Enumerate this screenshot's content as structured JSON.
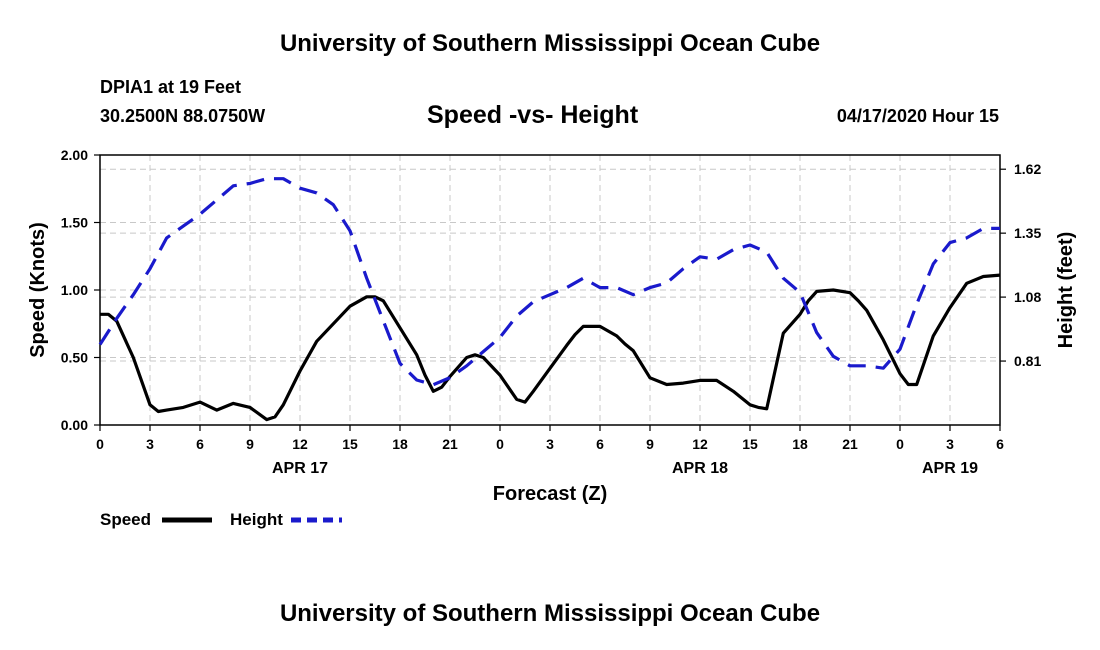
{
  "header": {
    "title": "University of Southern Mississippi Ocean Cube",
    "station": "DPIA1 at 19 Feet",
    "coords": "30.2500N 88.0750W",
    "subtitle": "Speed -vs- Height",
    "datetime": "04/17/2020 Hour 15"
  },
  "footer": {
    "title": "University of Southern Mississippi Ocean Cube"
  },
  "chart_data": {
    "type": "line",
    "title": "Speed -vs- Height",
    "xlabel": "Forecast (Z)",
    "ylabel": "Speed (Knots)",
    "y2label": "Height (feet)",
    "xlim": [
      0,
      54
    ],
    "ylim": [
      0,
      2.0
    ],
    "y2lim": [
      0.54,
      1.68
    ],
    "x_ticks": [
      0,
      3,
      6,
      9,
      12,
      15,
      18,
      21,
      24,
      27,
      30,
      33,
      36,
      39,
      42,
      45,
      48,
      51,
      54
    ],
    "x_tick_labels": [
      "0",
      "3",
      "6",
      "9",
      "12",
      "15",
      "18",
      "21",
      "0",
      "3",
      "6",
      "9",
      "12",
      "15",
      "18",
      "21",
      "0",
      "3",
      "6"
    ],
    "date_labels": [
      {
        "x": 12,
        "label": "APR 17"
      },
      {
        "x": 36,
        "label": "APR 18"
      },
      {
        "x": 51,
        "label": "APR 19"
      }
    ],
    "y_ticks": [
      0,
      0.5,
      1.0,
      1.5,
      2.0
    ],
    "y_tick_labels": [
      "0.00",
      "0.50",
      "1.00",
      "1.50",
      "2.00"
    ],
    "y2_ticks": [
      0.81,
      1.08,
      1.35,
      1.62
    ],
    "y2_tick_labels": [
      "0.81",
      "1.08",
      "1.35",
      "1.62"
    ],
    "grid": true,
    "legend_position": "bottom-left",
    "series": [
      {
        "name": "Speed",
        "axis": "left",
        "color": "#000000",
        "dash": "solid",
        "x": [
          0,
          0.5,
          1,
          2,
          3,
          3.5,
          4,
          5,
          6,
          7,
          8,
          9,
          10,
          10.5,
          11,
          12,
          13,
          14,
          15,
          16,
          16.5,
          17,
          18,
          19,
          19.5,
          20,
          20.5,
          21,
          22,
          22.5,
          23,
          24,
          25,
          25.5,
          26,
          27,
          28,
          28.5,
          29,
          30,
          31,
          31.5,
          32,
          33,
          34,
          35,
          36,
          36.5,
          37,
          38,
          39,
          39.5,
          40,
          41,
          42,
          42.5,
          43,
          44,
          45,
          45.5,
          46,
          47,
          48,
          48.5,
          49,
          50,
          51,
          52,
          53,
          54
        ],
        "values": [
          0.82,
          0.82,
          0.77,
          0.5,
          0.15,
          0.1,
          0.11,
          0.13,
          0.17,
          0.11,
          0.16,
          0.13,
          0.04,
          0.06,
          0.15,
          0.4,
          0.62,
          0.75,
          0.88,
          0.95,
          0.95,
          0.92,
          0.72,
          0.52,
          0.37,
          0.25,
          0.28,
          0.36,
          0.5,
          0.52,
          0.5,
          0.37,
          0.19,
          0.17,
          0.25,
          0.42,
          0.59,
          0.67,
          0.73,
          0.73,
          0.66,
          0.6,
          0.55,
          0.35,
          0.3,
          0.31,
          0.33,
          0.33,
          0.33,
          0.25,
          0.15,
          0.13,
          0.12,
          0.68,
          0.82,
          0.92,
          0.99,
          1.0,
          0.98,
          0.92,
          0.85,
          0.63,
          0.38,
          0.3,
          0.3,
          0.66,
          0.87,
          1.05,
          1.1,
          1.11
        ]
      },
      {
        "name": "Height",
        "axis": "right",
        "color": "#1a1acc",
        "dash": "dashed",
        "x": [
          0,
          1,
          2,
          3,
          4,
          5,
          6,
          7,
          8,
          9,
          10,
          11,
          12,
          13,
          14,
          15,
          16,
          17,
          18,
          19,
          20,
          21,
          22,
          23,
          24,
          25,
          26,
          27,
          28,
          29,
          30,
          31,
          32,
          33,
          34,
          35,
          36,
          37,
          38,
          39,
          40,
          41,
          42,
          43,
          44,
          45,
          46,
          47,
          48,
          49,
          50,
          51,
          52,
          53,
          54
        ],
        "values": [
          0.88,
          0.99,
          1.09,
          1.2,
          1.33,
          1.38,
          1.43,
          1.49,
          1.55,
          1.56,
          1.58,
          1.58,
          1.54,
          1.52,
          1.47,
          1.36,
          1.16,
          0.98,
          0.8,
          0.73,
          0.71,
          0.74,
          0.79,
          0.85,
          0.91,
          1.0,
          1.06,
          1.09,
          1.12,
          1.16,
          1.12,
          1.12,
          1.09,
          1.12,
          1.14,
          1.2,
          1.25,
          1.24,
          1.28,
          1.3,
          1.27,
          1.16,
          1.1,
          0.93,
          0.83,
          0.79,
          0.79,
          0.78,
          0.86,
          1.05,
          1.22,
          1.31,
          1.33,
          1.37,
          1.37
        ]
      }
    ]
  }
}
